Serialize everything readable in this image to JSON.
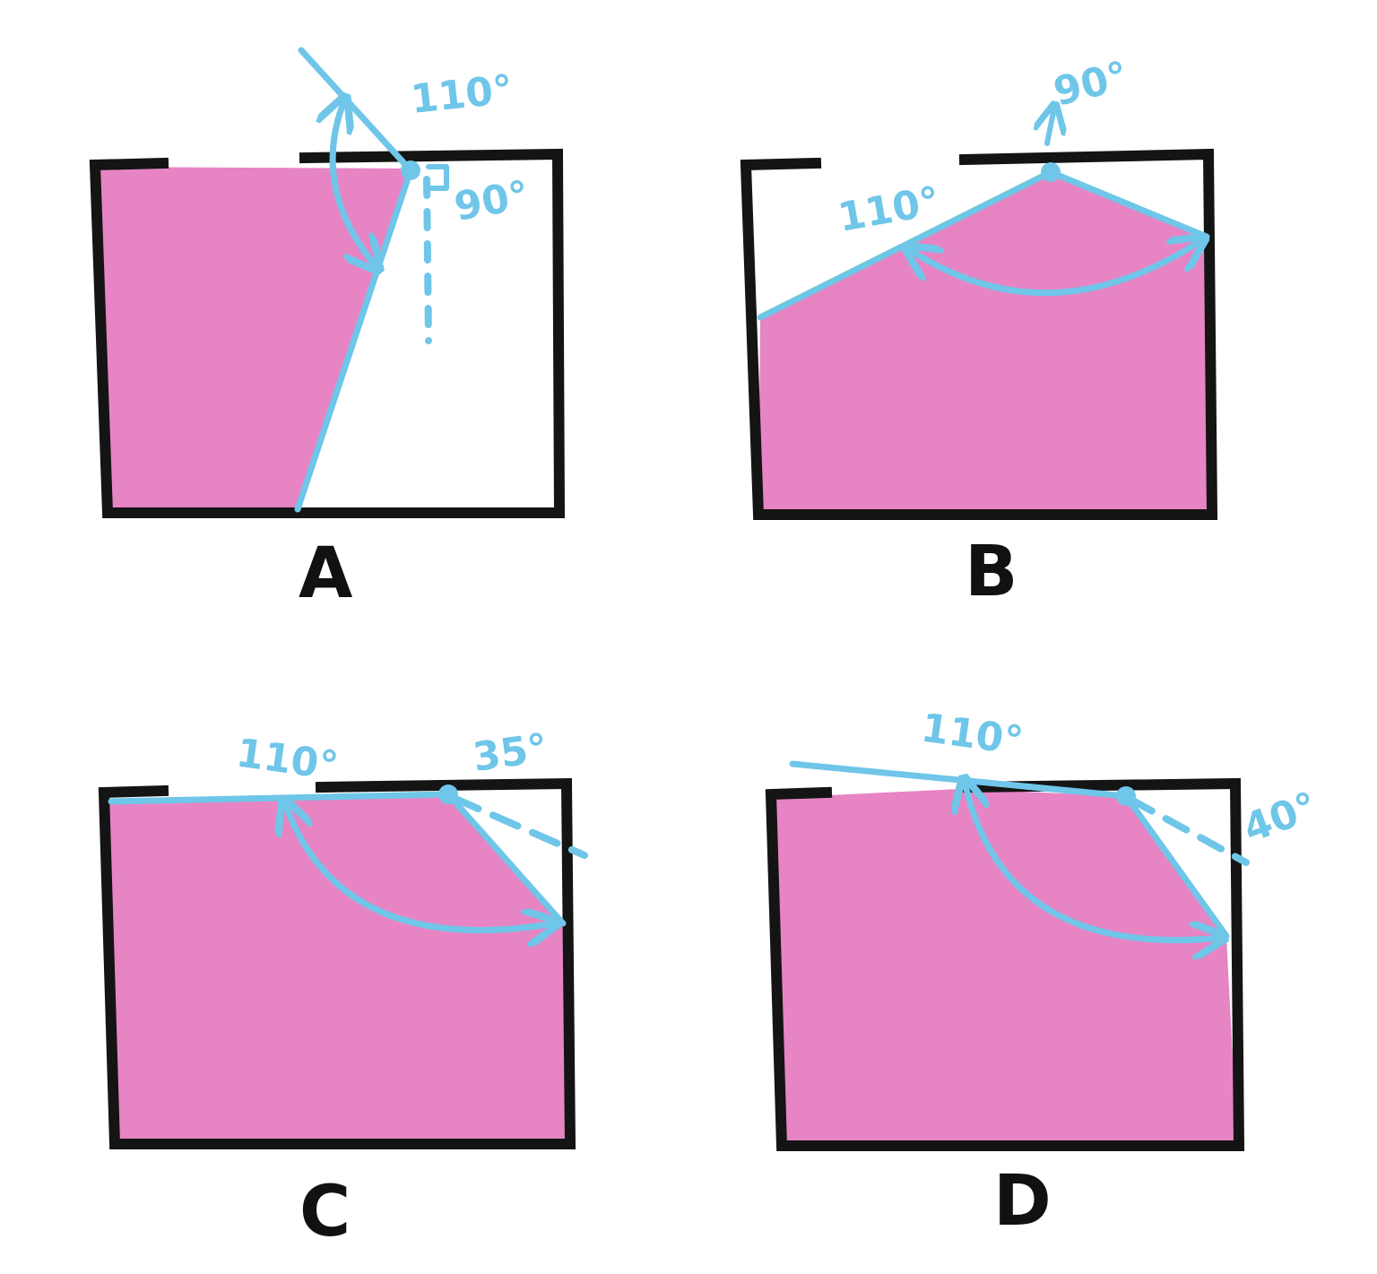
{
  "colors": {
    "fill": "#e784c4",
    "line": "#6fc6e8",
    "frame": "#141414"
  },
  "panels": [
    {
      "label": "A",
      "angles": [
        "110°",
        "90°"
      ]
    },
    {
      "label": "B",
      "angles": [
        "110°",
        "90°"
      ]
    },
    {
      "label": "C",
      "angles": [
        "110°",
        "35°"
      ]
    },
    {
      "label": "D",
      "angles": [
        "110°",
        "40°"
      ]
    }
  ]
}
